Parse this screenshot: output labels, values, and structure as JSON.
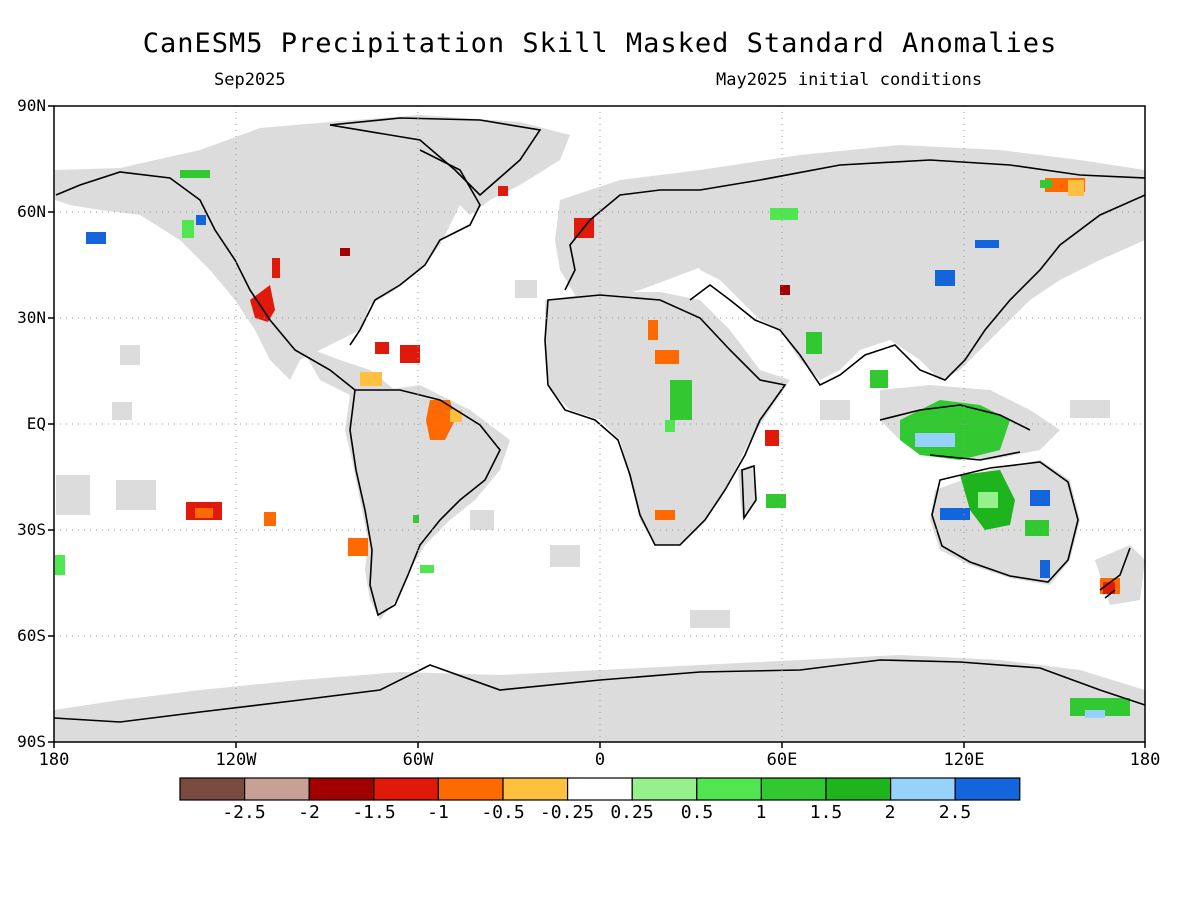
{
  "title": "CanESM5 Precipitation Skill Masked Standard Anomalies",
  "subtitle_left": "Sep2025",
  "subtitle_right": "May2025 initial conditions",
  "map": {
    "lat_range": [
      -90,
      90
    ],
    "lon_range": [
      -180,
      180
    ],
    "grid": true,
    "lat_labels": [
      "90N",
      "60N",
      "30N",
      "EQ",
      "30S",
      "60S",
      "90S"
    ],
    "lon_labels": [
      "180",
      "120W",
      "60W",
      "0",
      "60E",
      "120E",
      "180"
    ],
    "mask_color": "#dcdcdc",
    "ocean_color": "#ffffff",
    "coast_color": "#000000"
  },
  "colorbar": {
    "labels": [
      "-2.5",
      "-2",
      "-1.5",
      "-1",
      "-0.5",
      "-0.25",
      "0.25",
      "0.5",
      "1",
      "1.5",
      "2",
      "2.5"
    ],
    "colors": [
      "#7a4a40",
      "#c8a096",
      "#a00000",
      "#e01a0a",
      "#ff6a00",
      "#ffc040",
      "#ffffff",
      "#96f08c",
      "#50e650",
      "#32c832",
      "#1eb41e",
      "#96d2fa",
      "#1464dc"
    ]
  }
}
